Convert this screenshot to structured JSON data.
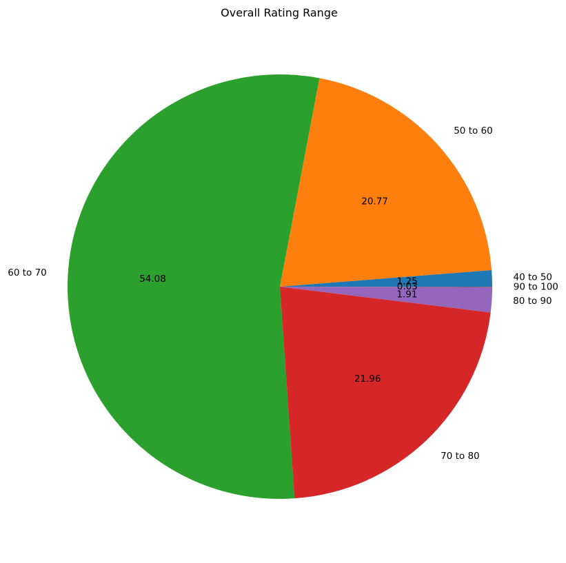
{
  "chart_data": {
    "type": "pie",
    "title": "Overall Rating Range",
    "slices": [
      {
        "label": "40 to 50",
        "value": 1.25,
        "value_text": "1.25",
        "color": "#1f77b4"
      },
      {
        "label": "50 to 60",
        "value": 20.77,
        "value_text": "20.77",
        "color": "#ff7f0e"
      },
      {
        "label": "60 to 70",
        "value": 54.08,
        "value_text": "54.08",
        "color": "#2ca02c"
      },
      {
        "label": "70 to 80",
        "value": 21.96,
        "value_text": "21.96",
        "color": "#d62728"
      },
      {
        "label": "80 to 90",
        "value": 1.91,
        "value_text": "1.91",
        "color": "#9467bd"
      },
      {
        "label": "90 to 100",
        "value": 0.03,
        "value_text": "0.03",
        "color": "#8c564b"
      }
    ],
    "start_angle": "0 degrees (3 o'clock)",
    "direction": "counterclockwise",
    "legend": "none"
  }
}
